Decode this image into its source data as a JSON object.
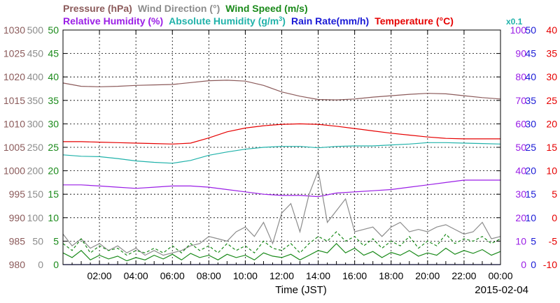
{
  "chart_data": {
    "type": "line",
    "legend_row1": [
      {
        "text": "Pressure (hPa)",
        "color": "#8B5A5A"
      },
      {
        "text": "Wind Direction (°)",
        "color": "#8c8c8c"
      },
      {
        "text": "Wind Speed (m/s)",
        "color": "#1a8a1a"
      }
    ],
    "legend_row2": [
      {
        "text": "Relative Humidity (%)",
        "color": "#9a1ee6"
      },
      {
        "text": "Absolute Humidity (g/m",
        "sup": "3",
        "close": ")",
        "color": "#20b2aa"
      },
      {
        "text": "Rain Rate(mm/h)",
        "color": "#1a1ad6"
      },
      {
        "text": "Temperature (°C)",
        "color": "#e60000"
      }
    ],
    "multiplier_label": "x0.1",
    "x_axis": {
      "label": "Time (JST)",
      "date": "2015-02-04",
      "ticks": [
        "02:00",
        "04:00",
        "06:00",
        "08:00",
        "10:00",
        "12:00",
        "14:00",
        "16:00",
        "18:00",
        "20:00",
        "22:00",
        "00:00"
      ],
      "range_hours": [
        0,
        24
      ]
    },
    "left_axes": [
      {
        "name": "Pressure",
        "color": "#8B5A5A",
        "ticks": [
          980,
          985,
          990,
          995,
          1000,
          1005,
          1010,
          1015,
          1020,
          1025,
          1030
        ],
        "range": [
          980,
          1030
        ]
      },
      {
        "name": "Wind Direction",
        "color": "#8c8c8c",
        "ticks": [
          0,
          50,
          100,
          150,
          200,
          250,
          300,
          350,
          400,
          450,
          500
        ],
        "range": [
          0,
          500
        ]
      },
      {
        "name": "Wind Speed",
        "color": "#1a8a1a",
        "ticks": [
          0,
          5,
          10,
          15,
          20,
          25,
          30,
          35,
          40,
          45,
          50
        ],
        "range": [
          0,
          50
        ]
      }
    ],
    "right_axes": [
      {
        "name": "Relative Humidity",
        "color": "#9a1ee6",
        "ticks": [
          0,
          10,
          20,
          30,
          40,
          50,
          60,
          70,
          80,
          90,
          100
        ],
        "range": [
          0,
          100
        ]
      },
      {
        "name": "Rain Rate",
        "color": "#1a1ad6",
        "ticks": [
          0,
          5,
          10,
          15,
          20,
          25,
          30,
          35,
          40,
          45,
          50
        ],
        "range": [
          0,
          50
        ]
      },
      {
        "name": "Temperature",
        "color": "#e60000",
        "ticks": [
          -10,
          -5,
          0,
          5,
          10,
          15,
          20,
          25,
          30,
          35,
          40
        ],
        "range": [
          -10,
          40
        ]
      }
    ],
    "grid": true,
    "series": [
      {
        "name": "Pressure",
        "axis": "Pressure",
        "color": "#8B5A5A",
        "x": [
          0,
          1,
          2,
          3,
          4,
          5,
          6,
          7,
          8,
          9,
          10,
          11,
          12,
          13,
          14,
          15,
          16,
          17,
          18,
          19,
          20,
          21,
          22,
          23,
          24
        ],
        "y": [
          1018.7,
          1018.0,
          1017.9,
          1018.0,
          1018.2,
          1018.3,
          1018.4,
          1018.8,
          1019.2,
          1019.3,
          1019.1,
          1018.2,
          1016.8,
          1015.9,
          1015.2,
          1015.1,
          1015.3,
          1015.7,
          1016.0,
          1016.3,
          1016.5,
          1016.4,
          1016.0,
          1015.6,
          1015.3
        ]
      },
      {
        "name": "Temperature",
        "axis": "Temperature",
        "color": "#e60000",
        "x": [
          0,
          1,
          2,
          3,
          4,
          5,
          6,
          7,
          8,
          9,
          10,
          11,
          12,
          13,
          14,
          15,
          16,
          17,
          18,
          19,
          20,
          21,
          22,
          23,
          24
        ],
        "y": [
          16.2,
          16.2,
          16.1,
          16.0,
          15.9,
          15.8,
          15.7,
          15.9,
          17.0,
          18.3,
          19.1,
          19.6,
          19.9,
          20.0,
          19.9,
          19.5,
          19.0,
          18.5,
          18.0,
          17.6,
          17.2,
          16.9,
          16.8,
          16.8,
          16.8
        ]
      },
      {
        "name": "Absolute Humidity (x0.1)",
        "axis": "Rain Rate",
        "color": "#20b2aa",
        "x": [
          0,
          1,
          2,
          3,
          4,
          5,
          6,
          7,
          8,
          9,
          10,
          11,
          12,
          13,
          14,
          15,
          16,
          17,
          18,
          19,
          20,
          21,
          22,
          23,
          24
        ],
        "y": [
          23.4,
          23.1,
          23.0,
          22.6,
          22.1,
          21.8,
          21.6,
          22.2,
          23.3,
          24.0,
          24.6,
          25.0,
          25.2,
          25.2,
          24.9,
          25.2,
          25.3,
          25.3,
          25.5,
          25.7,
          26.0,
          26.0,
          25.9,
          25.8,
          25.7
        ]
      },
      {
        "name": "Relative Humidity",
        "axis": "Relative Humidity",
        "color": "#9a1ee6",
        "x": [
          0,
          1,
          2,
          3,
          4,
          5,
          6,
          7,
          8,
          9,
          10,
          11,
          12,
          13,
          14,
          15,
          16,
          17,
          18,
          19,
          20,
          21,
          22,
          23,
          24
        ],
        "y": [
          34,
          34,
          33.5,
          33,
          32.5,
          33,
          33.5,
          33.5,
          33,
          32,
          31,
          30,
          29.5,
          29.5,
          29,
          30.5,
          31,
          31.5,
          32,
          33,
          34,
          35,
          36,
          36,
          36
        ]
      },
      {
        "name": "Wind Direction",
        "axis": "Wind Direction",
        "color": "#8c8c8c",
        "x": [
          0,
          0.5,
          1,
          1.5,
          2,
          2.5,
          3,
          3.5,
          4,
          4.5,
          5,
          5.5,
          6,
          6.5,
          7,
          7.5,
          8,
          8.5,
          9,
          9.5,
          10,
          10.5,
          11,
          11.5,
          12,
          12.5,
          13,
          13.5,
          14,
          14.5,
          15,
          15.5,
          16,
          16.5,
          17,
          17.5,
          18,
          18.5,
          19,
          19.5,
          20,
          20.5,
          21,
          21.5,
          22,
          22.5,
          23,
          23.5,
          24
        ],
        "y": [
          65,
          40,
          55,
          35,
          45,
          30,
          40,
          25,
          35,
          20,
          30,
          20,
          25,
          30,
          40,
          45,
          60,
          55,
          50,
          70,
          80,
          60,
          90,
          45,
          110,
          130,
          70,
          150,
          200,
          90,
          115,
          140,
          70,
          75,
          80,
          60,
          80,
          90,
          70,
          75,
          70,
          80,
          85,
          75,
          65,
          70,
          90,
          55,
          60
        ]
      },
      {
        "name": "Wind Speed",
        "axis": "Wind Speed",
        "color": "#1a8a1a",
        "x": [
          0,
          0.5,
          1,
          1.5,
          2,
          2.5,
          3,
          3.5,
          4,
          4.5,
          5,
          5.5,
          6,
          6.5,
          7,
          7.5,
          8,
          8.5,
          9,
          9.5,
          10,
          10.5,
          11,
          11.5,
          12,
          12.5,
          13,
          13.5,
          14,
          14.5,
          15,
          15.5,
          16,
          16.5,
          17,
          17.5,
          18,
          18.5,
          19,
          19.5,
          20,
          20.5,
          21,
          21.5,
          22,
          22.5,
          23,
          23.5,
          24
        ],
        "y": [
          2.5,
          1.5,
          3.0,
          1.0,
          2.0,
          1.2,
          1.8,
          0.8,
          1.5,
          1.0,
          2.0,
          1.2,
          2.2,
          1.0,
          2.4,
          1.5,
          2.0,
          1.0,
          2.2,
          1.5,
          2.0,
          1.0,
          2.5,
          1.8,
          1.5,
          2.2,
          1.0,
          2.0,
          3.0,
          2.5,
          4.5,
          2.5,
          3.5,
          2.0,
          2.8,
          1.5,
          2.6,
          2.0,
          3.0,
          1.8,
          2.5,
          2.0,
          3.5,
          2.2,
          3.0,
          2.4,
          3.2,
          2.0,
          2.8
        ]
      },
      {
        "name": "Wind Speed (gust)",
        "axis": "Wind Speed",
        "color": "#1a8a1a",
        "dashed": true,
        "x": [
          0,
          0.5,
          1,
          1.5,
          2,
          2.5,
          3,
          3.5,
          4,
          4.5,
          5,
          5.5,
          6,
          6.5,
          7,
          7.5,
          8,
          8.5,
          9,
          9.5,
          10,
          10.5,
          11,
          11.5,
          12,
          12.5,
          13,
          13.5,
          14,
          14.5,
          15,
          15.5,
          16,
          16.5,
          17,
          17.5,
          18,
          18.5,
          19,
          19.5,
          20,
          20.5,
          21,
          21.5,
          22,
          22.5,
          23,
          23.5,
          24
        ],
        "y": [
          4.5,
          3.0,
          5.5,
          2.5,
          4.0,
          3.0,
          3.5,
          2.0,
          3.0,
          2.5,
          3.5,
          2.5,
          4.0,
          2.5,
          4.5,
          3.0,
          4.0,
          2.5,
          4.5,
          3.0,
          4.0,
          2.5,
          5.0,
          3.5,
          3.0,
          4.5,
          2.5,
          4.5,
          6.0,
          5.0,
          7.0,
          5.0,
          6.0,
          4.0,
          5.5,
          3.5,
          5.0,
          4.0,
          6.0,
          3.5,
          5.0,
          4.0,
          6.5,
          4.5,
          5.5,
          5.0,
          6.0,
          4.5,
          5.5
        ]
      },
      {
        "name": "Rain Rate",
        "axis": "Rain Rate",
        "color": "#1a1ad6",
        "x": [
          0,
          24
        ],
        "y": [
          0,
          0
        ]
      }
    ]
  }
}
